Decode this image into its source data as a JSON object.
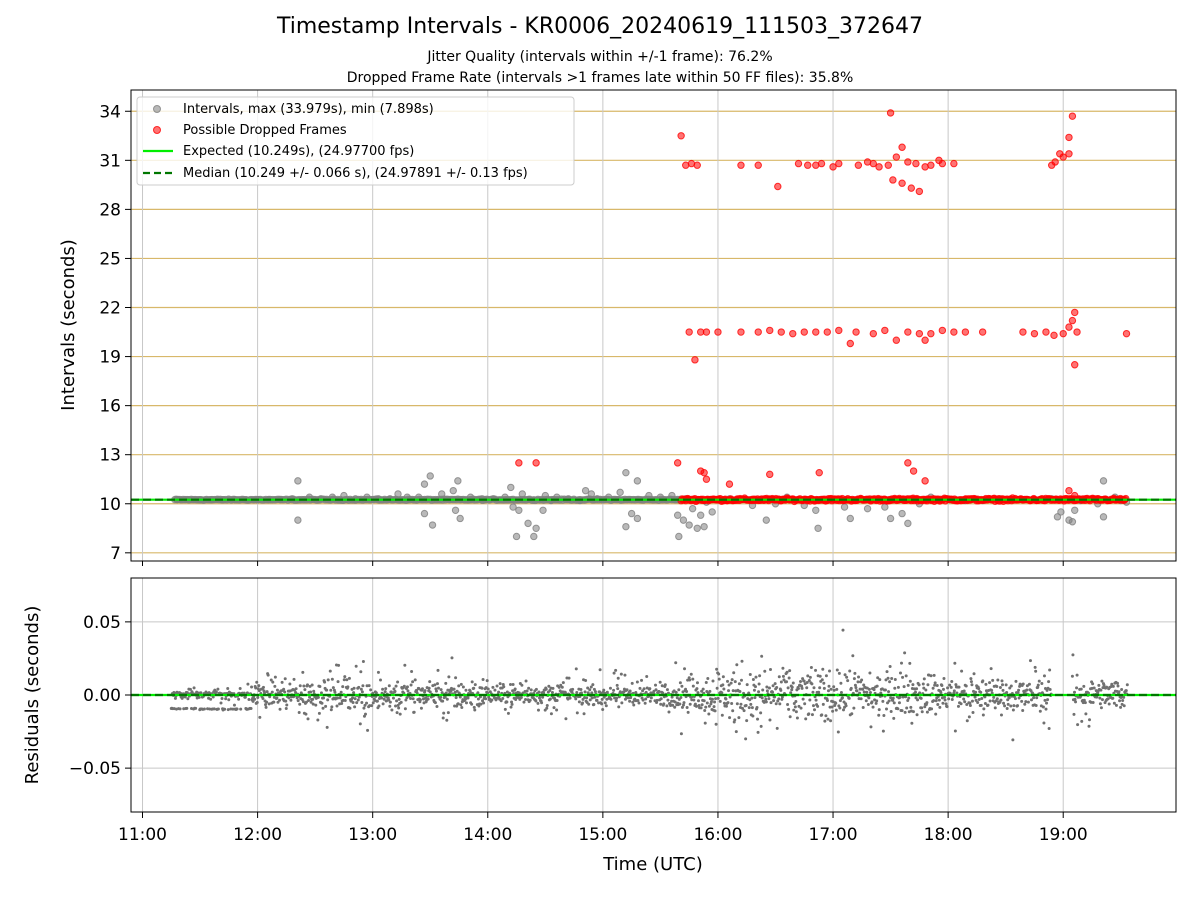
{
  "figure": {
    "title": "Timestamp Intervals - KR0006_20240619_111503_372647",
    "subtitle_jitter": "Jitter Quality (intervals within +/-1 frame): 76.2%",
    "subtitle_dropped": "Dropped Frame Rate (intervals >1 frames late within 50 FF files): 35.8%"
  },
  "colors": {
    "intervals": "#808080",
    "dropped": "#ff0000",
    "expected": "#00ee00",
    "median": "#007700",
    "grid_top": "#d8b86a",
    "grid": "#c8c8c8"
  },
  "chart_data": [
    {
      "type": "scatter",
      "xlabel": "",
      "ylabel": "Intervals (seconds)",
      "x_unit": "hours UTC",
      "xlim": [
        10.9,
        19.98
      ],
      "ylim": [
        6.5,
        35.3
      ],
      "yticks": [
        7,
        10,
        13,
        16,
        19,
        22,
        25,
        28,
        31,
        34
      ],
      "ytick_labels": [
        "7",
        "10",
        "13",
        "16",
        "19",
        "22",
        "25",
        "28",
        "31",
        "34"
      ],
      "grid": true,
      "legend_position": "top-left",
      "legend": [
        "Intervals, max (33.979s), min (7.898s)",
        "Possible Dropped Frames",
        "Expected (10.249s), (24.97700 fps)",
        "Median (10.249 +/- 0.066 s), (24.97891 +/- 0.13 fps)"
      ],
      "series": [
        {
          "name": "Intervals, max (33.979s), min (7.898s)",
          "style": "markers",
          "points": [
            [
              11.3,
              10.25
            ],
            [
              11.4,
              10.25
            ],
            [
              11.5,
              10.25
            ],
            [
              11.6,
              10.25
            ],
            [
              11.7,
              10.25
            ],
            [
              11.8,
              10.25
            ],
            [
              11.9,
              10.25
            ],
            [
              12.0,
              10.25
            ],
            [
              12.1,
              10.25
            ],
            [
              12.2,
              10.25
            ],
            [
              12.3,
              10.3
            ],
            [
              12.35,
              11.4
            ],
            [
              12.35,
              9.0
            ],
            [
              12.45,
              10.4
            ],
            [
              12.55,
              10.3
            ],
            [
              12.65,
              10.4
            ],
            [
              12.75,
              10.5
            ],
            [
              12.85,
              10.3
            ],
            [
              12.95,
              10.4
            ],
            [
              13.05,
              10.3
            ],
            [
              13.15,
              10.3
            ],
            [
              13.22,
              10.6
            ],
            [
              13.3,
              10.4
            ],
            [
              13.4,
              10.4
            ],
            [
              13.45,
              11.2
            ],
            [
              13.45,
              9.4
            ],
            [
              13.5,
              11.7
            ],
            [
              13.52,
              8.7
            ],
            [
              13.6,
              10.6
            ],
            [
              13.7,
              10.8
            ],
            [
              13.72,
              9.6
            ],
            [
              13.74,
              11.4
            ],
            [
              13.76,
              9.1
            ],
            [
              13.85,
              10.4
            ],
            [
              13.95,
              10.3
            ],
            [
              14.05,
              10.3
            ],
            [
              14.15,
              10.4
            ],
            [
              14.2,
              11.0
            ],
            [
              14.22,
              9.8
            ],
            [
              14.25,
              8.0
            ],
            [
              14.27,
              9.6
            ],
            [
              14.3,
              10.6
            ],
            [
              14.35,
              8.8
            ],
            [
              14.4,
              8.0
            ],
            [
              14.42,
              8.5
            ],
            [
              14.48,
              9.6
            ],
            [
              14.5,
              10.5
            ],
            [
              14.55,
              10.2
            ],
            [
              14.6,
              10.4
            ],
            [
              14.7,
              10.3
            ],
            [
              14.8,
              10.2
            ],
            [
              14.85,
              10.8
            ],
            [
              14.9,
              10.6
            ],
            [
              14.95,
              10.3
            ],
            [
              15.05,
              10.4
            ],
            [
              15.15,
              10.7
            ],
            [
              15.2,
              11.9
            ],
            [
              15.2,
              8.6
            ],
            [
              15.25,
              9.4
            ],
            [
              15.3,
              11.4
            ],
            [
              15.3,
              9.1
            ],
            [
              15.4,
              10.5
            ],
            [
              15.5,
              10.4
            ],
            [
              15.6,
              10.5
            ],
            [
              15.65,
              9.3
            ],
            [
              15.66,
              8.0
            ],
            [
              15.7,
              9.0
            ],
            [
              15.72,
              10.3
            ],
            [
              15.75,
              8.7
            ],
            [
              15.78,
              9.7
            ],
            [
              15.82,
              8.5
            ],
            [
              15.85,
              9.3
            ],
            [
              15.88,
              8.6
            ],
            [
              15.9,
              10.1
            ],
            [
              15.95,
              9.5
            ],
            [
              16.1,
              10.3
            ],
            [
              16.3,
              9.9
            ],
            [
              16.42,
              9.0
            ],
            [
              16.5,
              10.0
            ],
            [
              16.6,
              10.4
            ],
            [
              16.75,
              9.9
            ],
            [
              16.85,
              9.6
            ],
            [
              16.87,
              8.5
            ],
            [
              17.1,
              9.8
            ],
            [
              17.15,
              9.1
            ],
            [
              17.3,
              9.7
            ],
            [
              17.45,
              9.8
            ],
            [
              17.5,
              9.1
            ],
            [
              17.6,
              9.4
            ],
            [
              17.65,
              8.8
            ],
            [
              17.75,
              10.0
            ],
            [
              17.85,
              10.4
            ],
            [
              18.0,
              10.3
            ],
            [
              18.15,
              10.2
            ],
            [
              18.3,
              10.2
            ],
            [
              18.45,
              10.3
            ],
            [
              18.55,
              10.25
            ],
            [
              18.65,
              10.25
            ],
            [
              18.8,
              10.25
            ],
            [
              18.9,
              10.3
            ],
            [
              18.95,
              9.2
            ],
            [
              18.98,
              9.5
            ],
            [
              19.05,
              9.0
            ],
            [
              19.08,
              8.9
            ],
            [
              19.1,
              9.6
            ],
            [
              19.15,
              10.2
            ],
            [
              19.3,
              10.0
            ],
            [
              19.35,
              11.4
            ],
            [
              19.35,
              9.2
            ],
            [
              19.45,
              10.4
            ],
            [
              19.5,
              10.2
            ],
            [
              19.55,
              10.1
            ]
          ]
        },
        {
          "name": "Possible Dropped Frames",
          "style": "markers",
          "points": [
            [
              15.68,
              32.5
            ],
            [
              15.72,
              30.7
            ],
            [
              15.77,
              30.8
            ],
            [
              15.82,
              30.7
            ],
            [
              16.2,
              30.7
            ],
            [
              16.35,
              30.7
            ],
            [
              16.52,
              29.4
            ],
            [
              16.7,
              30.8
            ],
            [
              16.78,
              30.7
            ],
            [
              16.85,
              30.7
            ],
            [
              16.9,
              30.8
            ],
            [
              17.0,
              30.6
            ],
            [
              17.05,
              30.8
            ],
            [
              17.22,
              30.7
            ],
            [
              17.3,
              30.9
            ],
            [
              17.35,
              30.8
            ],
            [
              17.4,
              30.6
            ],
            [
              17.48,
              30.7
            ],
            [
              17.5,
              33.9
            ],
            [
              17.52,
              29.8
            ],
            [
              17.55,
              31.2
            ],
            [
              17.6,
              31.8
            ],
            [
              17.6,
              29.6
            ],
            [
              17.65,
              30.9
            ],
            [
              17.68,
              29.3
            ],
            [
              17.72,
              30.8
            ],
            [
              17.75,
              29.1
            ],
            [
              17.8,
              30.6
            ],
            [
              17.85,
              30.7
            ],
            [
              17.92,
              31.0
            ],
            [
              17.95,
              30.8
            ],
            [
              18.05,
              30.8
            ],
            [
              18.9,
              30.7
            ],
            [
              18.93,
              30.9
            ],
            [
              18.97,
              31.4
            ],
            [
              19.0,
              31.2
            ],
            [
              19.05,
              31.4
            ],
            [
              19.05,
              32.4
            ],
            [
              19.08,
              33.7
            ],
            [
              15.75,
              20.5
            ],
            [
              15.8,
              18.8
            ],
            [
              15.85,
              20.5
            ],
            [
              15.9,
              20.5
            ],
            [
              16.0,
              20.5
            ],
            [
              16.2,
              20.5
            ],
            [
              16.35,
              20.5
            ],
            [
              16.45,
              20.6
            ],
            [
              16.55,
              20.5
            ],
            [
              16.65,
              20.4
            ],
            [
              16.75,
              20.5
            ],
            [
              16.85,
              20.5
            ],
            [
              16.95,
              20.5
            ],
            [
              17.05,
              20.6
            ],
            [
              17.15,
              19.8
            ],
            [
              17.2,
              20.5
            ],
            [
              17.35,
              20.4
            ],
            [
              17.45,
              20.6
            ],
            [
              17.55,
              20.0
            ],
            [
              17.65,
              20.5
            ],
            [
              17.75,
              20.4
            ],
            [
              17.8,
              20.0
            ],
            [
              17.85,
              20.4
            ],
            [
              17.95,
              20.6
            ],
            [
              18.05,
              20.5
            ],
            [
              18.15,
              20.5
            ],
            [
              18.3,
              20.5
            ],
            [
              18.65,
              20.5
            ],
            [
              18.75,
              20.4
            ],
            [
              18.85,
              20.5
            ],
            [
              18.92,
              20.3
            ],
            [
              19.0,
              20.4
            ],
            [
              19.05,
              20.8
            ],
            [
              19.08,
              21.2
            ],
            [
              19.1,
              21.7
            ],
            [
              19.12,
              20.5
            ],
            [
              19.1,
              18.5
            ],
            [
              19.55,
              20.4
            ],
            [
              14.27,
              12.5
            ],
            [
              14.42,
              12.5
            ],
            [
              15.65,
              12.5
            ],
            [
              15.85,
              12.0
            ],
            [
              15.88,
              11.9
            ],
            [
              15.9,
              11.5
            ],
            [
              16.1,
              11.2
            ],
            [
              16.45,
              11.8
            ],
            [
              16.88,
              11.9
            ],
            [
              17.65,
              12.5
            ],
            [
              17.7,
              12.0
            ],
            [
              17.8,
              11.4
            ],
            [
              19.05,
              10.8
            ],
            [
              19.1,
              10.5
            ]
          ],
          "dense_band": [
            [
              15.68,
              19.55,
              10.25
            ]
          ]
        },
        {
          "name": "Expected (10.249s), (24.97700 fps)",
          "style": "solid line",
          "y_constant": 10.249
        },
        {
          "name": "Median (10.249 +/- 0.066 s), (24.97891 +/- 0.13 fps)",
          "style": "dashed line",
          "y_constant": 10.249
        }
      ]
    },
    {
      "type": "scatter",
      "xlabel": "Time (UTC)",
      "ylabel": "Residuals (seconds)",
      "x_unit": "hours UTC",
      "xlim": [
        10.9,
        19.98
      ],
      "ylim": [
        -0.08,
        0.08
      ],
      "xticks": [
        11,
        12,
        13,
        14,
        15,
        16,
        17,
        18,
        19
      ],
      "xtick_labels": [
        "11:00",
        "12:00",
        "13:00",
        "14:00",
        "15:00",
        "16:00",
        "17:00",
        "18:00",
        "19:00"
      ],
      "yticks": [
        -0.05,
        0.0,
        0.05
      ],
      "ytick_labels": [
        "−0.05",
        "0.00",
        "0.05"
      ],
      "grid": true,
      "series": [
        {
          "style": "markers",
          "spread_profile": [
            [
              11.25,
              0.012
            ],
            [
              11.9,
              0.015
            ],
            [
              12.0,
              0.025
            ],
            [
              12.5,
              0.03
            ],
            [
              13.0,
              0.035
            ],
            [
              13.5,
              0.025
            ],
            [
              13.8,
              0.035
            ],
            [
              14.0,
              0.022
            ],
            [
              14.5,
              0.02
            ],
            [
              15.0,
              0.02
            ],
            [
              15.4,
              0.022
            ],
            [
              15.7,
              0.035
            ],
            [
              16.0,
              0.045
            ],
            [
              16.5,
              0.045
            ],
            [
              17.0,
              0.05
            ],
            [
              17.5,
              0.045
            ],
            [
              18.0,
              0.04
            ],
            [
              18.5,
              0.035
            ],
            [
              18.9,
              0.04
            ],
            [
              19.1,
              0.03
            ],
            [
              19.55,
              0.035
            ]
          ],
          "gaps_hours": [
            [
              18.9,
              19.08
            ]
          ]
        },
        {
          "name": "Expected",
          "style": "solid line",
          "y_constant": 0.0
        },
        {
          "name": "Median",
          "style": "dashed line",
          "y_constant": 0.0
        }
      ]
    }
  ]
}
